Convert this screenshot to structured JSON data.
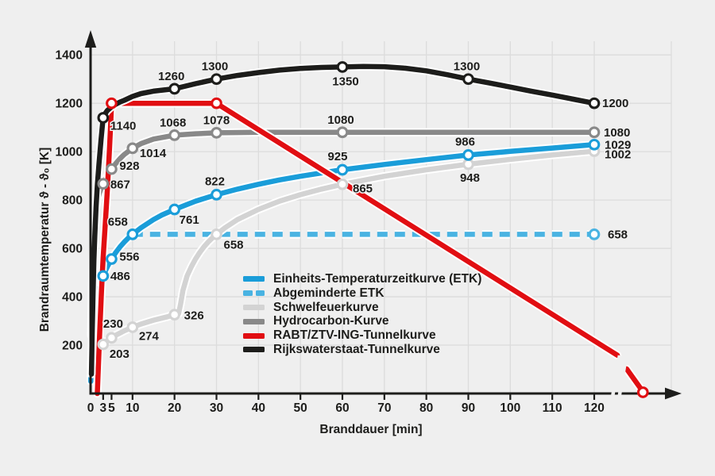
{
  "colors": {
    "background": "#efefef",
    "grid": "#dcdcdc",
    "axis": "#1d1d1b",
    "text": "#1d1d1b",
    "etk_blue": "#1a9dd9",
    "abgeminderte_blue": "#49b3e2",
    "schwelfeuer_gray": "#d3d3d3",
    "hydrocarbon_gray": "#898989",
    "rabt_red": "#e10e12",
    "rws_black": "#1d1d1b"
  },
  "chart_data": {
    "type": "line",
    "xlabel": "Branddauer  [min]",
    "ylabel": "Brandraumtemperatur  ϑ - ϑ₀  [K]",
    "xlim": [
      0,
      132
    ],
    "ylim": [
      0,
      1450
    ],
    "x_ticks": [
      0,
      3,
      5,
      10,
      20,
      30,
      40,
      50,
      60,
      70,
      80,
      90,
      100,
      110,
      120
    ],
    "y_ticks": [
      200,
      400,
      600,
      800,
      1000,
      1200,
      1400
    ],
    "grid": true,
    "grid_x": [
      10,
      20,
      30,
      40,
      50,
      60,
      70,
      80,
      90,
      100,
      110,
      120
    ],
    "axis_break": {
      "t_center": 125.7,
      "note": "break marks on RABT curve and x-axis before its end point"
    },
    "legend": [
      {
        "label": "Einheits-Temperaturzeitkurve (ETK)",
        "color": "#1a9dd9",
        "dash": false
      },
      {
        "label": "Abgeminderte ETK",
        "color": "#49b3e2",
        "dash": true
      },
      {
        "label": "Schwelfeuerkurve",
        "color": "#d3d3d3",
        "dash": false
      },
      {
        "label": "Hydrocarbon-Kurve",
        "color": "#898989",
        "dash": false
      },
      {
        "label": "RABT/ZTV-ING-Tunnelkurve",
        "color": "#e10e12",
        "dash": false
      },
      {
        "label": "Rijkswaterstaat-Tunnelkurve",
        "color": "#1d1d1b",
        "dash": false
      }
    ],
    "series": [
      {
        "name": "abgeminderte-etk",
        "color": "#49b3e2",
        "dash": true,
        "segments": [
          [
            [
              10,
              658
            ],
            [
              120,
              658
            ]
          ]
        ],
        "markers": [
          {
            "t": 120,
            "v": 658,
            "label": "658",
            "anchor": "s",
            "dx": 17,
            "dy": 5
          }
        ]
      },
      {
        "name": "schwelfeuerkurve",
        "color": "#d3d3d3",
        "dash": false,
        "segments": [
          [
            [
              0.3,
              114
            ],
            [
              0.8,
              145
            ],
            [
              1.5,
              170
            ],
            [
              2,
              183
            ],
            [
              3,
              203
            ],
            [
              4,
              218
            ],
            [
              5,
              230
            ],
            [
              6,
              241
            ],
            [
              7,
              250
            ],
            [
              8,
              259
            ],
            [
              10,
              274
            ],
            [
              12,
              287
            ],
            [
              15,
              303
            ],
            [
              18,
              316
            ],
            [
              20,
              326
            ],
            [
              21,
              331
            ],
            [
              21.5,
              375
            ],
            [
              22,
              425
            ],
            [
              23,
              486
            ],
            [
              24,
              524
            ],
            [
              25,
              556
            ],
            [
              26,
              583
            ],
            [
              27,
              606
            ],
            [
              28,
              626
            ],
            [
              29,
              643
            ],
            [
              30,
              658
            ],
            [
              32,
              685
            ],
            [
              35,
              719
            ],
            [
              40,
              761
            ],
            [
              45,
              795
            ],
            [
              50,
              822
            ],
            [
              55,
              845
            ],
            [
              60,
              865
            ],
            [
              70,
              898
            ],
            [
              80,
              925
            ],
            [
              90,
              948
            ],
            [
              100,
              968
            ],
            [
              110,
              986
            ],
            [
              120,
              1002
            ]
          ]
        ],
        "markers": [
          {
            "t": 3,
            "v": 203,
            "label": "203",
            "anchor": "s",
            "dx": 8,
            "dy": 17
          },
          {
            "t": 5,
            "v": 230,
            "label": "230",
            "anchor": "m",
            "dx": 2,
            "dy": -13
          },
          {
            "t": 10,
            "v": 274,
            "label": "274",
            "anchor": "s",
            "dx": 8,
            "dy": 16
          },
          {
            "t": 20,
            "v": 326,
            "label": "326",
            "anchor": "s",
            "dx": 12,
            "dy": 6
          },
          {
            "t": 30,
            "v": 658,
            "label": "658",
            "anchor": "s",
            "dx": 9,
            "dy": 18
          },
          {
            "t": 60,
            "v": 865,
            "label": "865",
            "anchor": "s",
            "dx": 13,
            "dy": 10
          },
          {
            "t": 90,
            "v": 948,
            "label": "948",
            "anchor": "m",
            "dx": 2,
            "dy": 22
          },
          {
            "t": 120,
            "v": 1002,
            "label": "1002",
            "anchor": "s",
            "dx": 13,
            "dy": 9
          }
        ]
      },
      {
        "name": "hydrocarbon-kurve",
        "color": "#898989",
        "dash": false,
        "segments": [
          [
            [
              0.15,
              240
            ],
            [
              0.3,
              380
            ],
            [
              0.5,
              548
            ],
            [
              0.75,
              645
            ],
            [
              1,
              723
            ],
            [
              1.5,
              789
            ],
            [
              2,
              824
            ],
            [
              2.5,
              847
            ],
            [
              3,
              867
            ],
            [
              3.5,
              885
            ],
            [
              4,
              900
            ],
            [
              4.5,
              915
            ],
            [
              5,
              928
            ],
            [
              6,
              951
            ],
            [
              7,
              971
            ],
            [
              8,
              988
            ],
            [
              10,
              1014
            ],
            [
              12,
              1033
            ],
            [
              15,
              1052
            ],
            [
              20,
              1068
            ],
            [
              25,
              1074
            ],
            [
              30,
              1078
            ],
            [
              40,
              1080
            ],
            [
              60,
              1080
            ],
            [
              90,
              1080
            ],
            [
              120,
              1080
            ]
          ]
        ],
        "markers": [
          {
            "t": 3,
            "v": 867,
            "label": "867",
            "anchor": "s",
            "dx": 9,
            "dy": 6
          },
          {
            "t": 5,
            "v": 928,
            "label": "928",
            "anchor": "s",
            "dx": 10,
            "dy": 1
          },
          {
            "t": 10,
            "v": 1014,
            "label": "1014",
            "anchor": "s",
            "dx": 9,
            "dy": 11
          },
          {
            "t": 20,
            "v": 1068,
            "label": "1068",
            "anchor": "m",
            "dx": -2,
            "dy": -11
          },
          {
            "t": 30,
            "v": 1078,
            "label": "1078",
            "anchor": "m",
            "dx": 0,
            "dy": -11
          },
          {
            "t": 60,
            "v": 1080,
            "label": "1080",
            "anchor": "m",
            "dx": -2,
            "dy": -11
          },
          {
            "t": 120,
            "v": 1080,
            "label": "1080",
            "anchor": "s",
            "dx": 12,
            "dy": 5
          }
        ]
      },
      {
        "name": "einheits-temperaturzeitkurve",
        "color": "#1a9dd9",
        "dash": false,
        "segments": [
          [
            [
              0.05,
              50
            ],
            [
              0.15,
              118
            ],
            [
              0.3,
              186
            ],
            [
              0.5,
              241
            ],
            [
              0.8,
              300
            ],
            [
              1,
              329
            ],
            [
              1.5,
              383
            ],
            [
              2,
              425
            ],
            [
              2.5,
              458
            ],
            [
              3,
              486
            ],
            [
              3.5,
              506
            ],
            [
              4,
              524
            ],
            [
              4.5,
              541
            ],
            [
              5,
              556
            ],
            [
              6,
              583
            ],
            [
              7,
              606
            ],
            [
              8,
              626
            ],
            [
              9,
              643
            ],
            [
              10,
              658
            ],
            [
              12,
              685
            ],
            [
              15,
              719
            ],
            [
              17,
              738
            ],
            [
              20,
              761
            ],
            [
              25,
              795
            ],
            [
              30,
              822
            ],
            [
              35,
              845
            ],
            [
              40,
              865
            ],
            [
              45,
              883
            ],
            [
              50,
              898
            ],
            [
              55,
              912
            ],
            [
              60,
              925
            ],
            [
              70,
              947
            ],
            [
              80,
              967
            ],
            [
              90,
              986
            ],
            [
              100,
              1001
            ],
            [
              110,
              1015
            ],
            [
              120,
              1029
            ]
          ]
        ],
        "markers": [
          {
            "t": 3,
            "v": 486,
            "label": "486",
            "anchor": "s",
            "dx": 9,
            "dy": 5
          },
          {
            "t": 5,
            "v": 556,
            "label": "556",
            "anchor": "s",
            "dx": 10,
            "dy": 2
          },
          {
            "t": 10,
            "v": 658,
            "label": "658",
            "anchor": "e",
            "dx": -6,
            "dy": -11
          },
          {
            "t": 20,
            "v": 761,
            "label": "761",
            "anchor": "s",
            "dx": 6,
            "dy": 18
          },
          {
            "t": 30,
            "v": 822,
            "label": "822",
            "anchor": "m",
            "dx": -2,
            "dy": -12
          },
          {
            "t": 60,
            "v": 925,
            "label": "925",
            "anchor": "m",
            "dx": -6,
            "dy": -12
          },
          {
            "t": 90,
            "v": 986,
            "label": "986",
            "anchor": "m",
            "dx": -4,
            "dy": -12
          },
          {
            "t": 120,
            "v": 1029,
            "label": "1029",
            "anchor": "s",
            "dx": 13,
            "dy": 5
          }
        ]
      },
      {
        "name": "rabt-ztv-ing-tunnelkurve",
        "color": "#e10e12",
        "dash": false,
        "segments": [
          [
            [
              1.6,
              0
            ],
            [
              2.2,
              260
            ],
            [
              2.6,
              420
            ],
            [
              3,
              560
            ],
            [
              3.5,
              700
            ],
            [
              4,
              840
            ],
            [
              4.5,
              1010
            ],
            [
              4.8,
              1120
            ],
            [
              5,
              1200
            ],
            [
              30,
              1200
            ],
            [
              125.5,
              158
            ]
          ],
          [
            [
              127.7,
              102
            ],
            [
              131.5,
              10
            ]
          ]
        ],
        "markers": [
          {
            "t": 5,
            "v": 1200,
            "label": "",
            "anchor": "m",
            "dx": 0,
            "dy": 0
          },
          {
            "t": 30,
            "v": 1200,
            "label": "",
            "anchor": "m",
            "dx": 0,
            "dy": 0
          },
          {
            "t": 131.6,
            "v": 5,
            "label": "",
            "anchor": "m",
            "dx": 0,
            "dy": 0
          }
        ]
      },
      {
        "name": "rijkswaterstaat-tunnelkurve",
        "color": "#1d1d1b",
        "dash": false,
        "segments": [
          [
            [
              0.2,
              80
            ],
            [
              0.4,
              260
            ],
            [
              0.6,
              420
            ],
            [
              0.8,
              550
            ],
            [
              1,
              650
            ],
            [
              1.3,
              770
            ],
            [
              1.6,
              860
            ],
            [
              2,
              950
            ],
            [
              2.5,
              1050
            ],
            [
              3,
              1140
            ],
            [
              3.5,
              1158
            ],
            [
              4,
              1170
            ],
            [
              5,
              1185
            ],
            [
              6,
              1196
            ],
            [
              7,
              1205
            ],
            [
              8,
              1212
            ],
            [
              10,
              1228
            ],
            [
              12,
              1240
            ],
            [
              15,
              1250
            ],
            [
              20,
              1260
            ],
            [
              25,
              1281
            ],
            [
              30,
              1300
            ],
            [
              35,
              1315
            ],
            [
              40,
              1327
            ],
            [
              45,
              1337
            ],
            [
              50,
              1344
            ],
            [
              55,
              1348
            ],
            [
              60,
              1350
            ],
            [
              65,
              1352
            ],
            [
              70,
              1351
            ],
            [
              75,
              1345
            ],
            [
              80,
              1334
            ],
            [
              85,
              1318
            ],
            [
              90,
              1300
            ],
            [
              95,
              1284
            ],
            [
              100,
              1267
            ],
            [
              105,
              1250
            ],
            [
              110,
              1234
            ],
            [
              115,
              1217
            ],
            [
              120,
              1200
            ]
          ]
        ],
        "markers": [
          {
            "t": 3,
            "v": 1140,
            "label": "1140",
            "anchor": "s",
            "dx": 9,
            "dy": 15
          },
          {
            "t": 20,
            "v": 1260,
            "label": "1260",
            "anchor": "m",
            "dx": -4,
            "dy": -11
          },
          {
            "t": 30,
            "v": 1300,
            "label": "1300",
            "anchor": "m",
            "dx": -2,
            "dy": -11
          },
          {
            "t": 60,
            "v": 1350,
            "label": "1350",
            "anchor": "m",
            "dx": 4,
            "dy": 23
          },
          {
            "t": 90,
            "v": 1300,
            "label": "1300",
            "anchor": "m",
            "dx": -2,
            "dy": -11
          },
          {
            "t": 120,
            "v": 1200,
            "label": "1200",
            "anchor": "s",
            "dx": 10,
            "dy": 5
          }
        ]
      }
    ]
  }
}
